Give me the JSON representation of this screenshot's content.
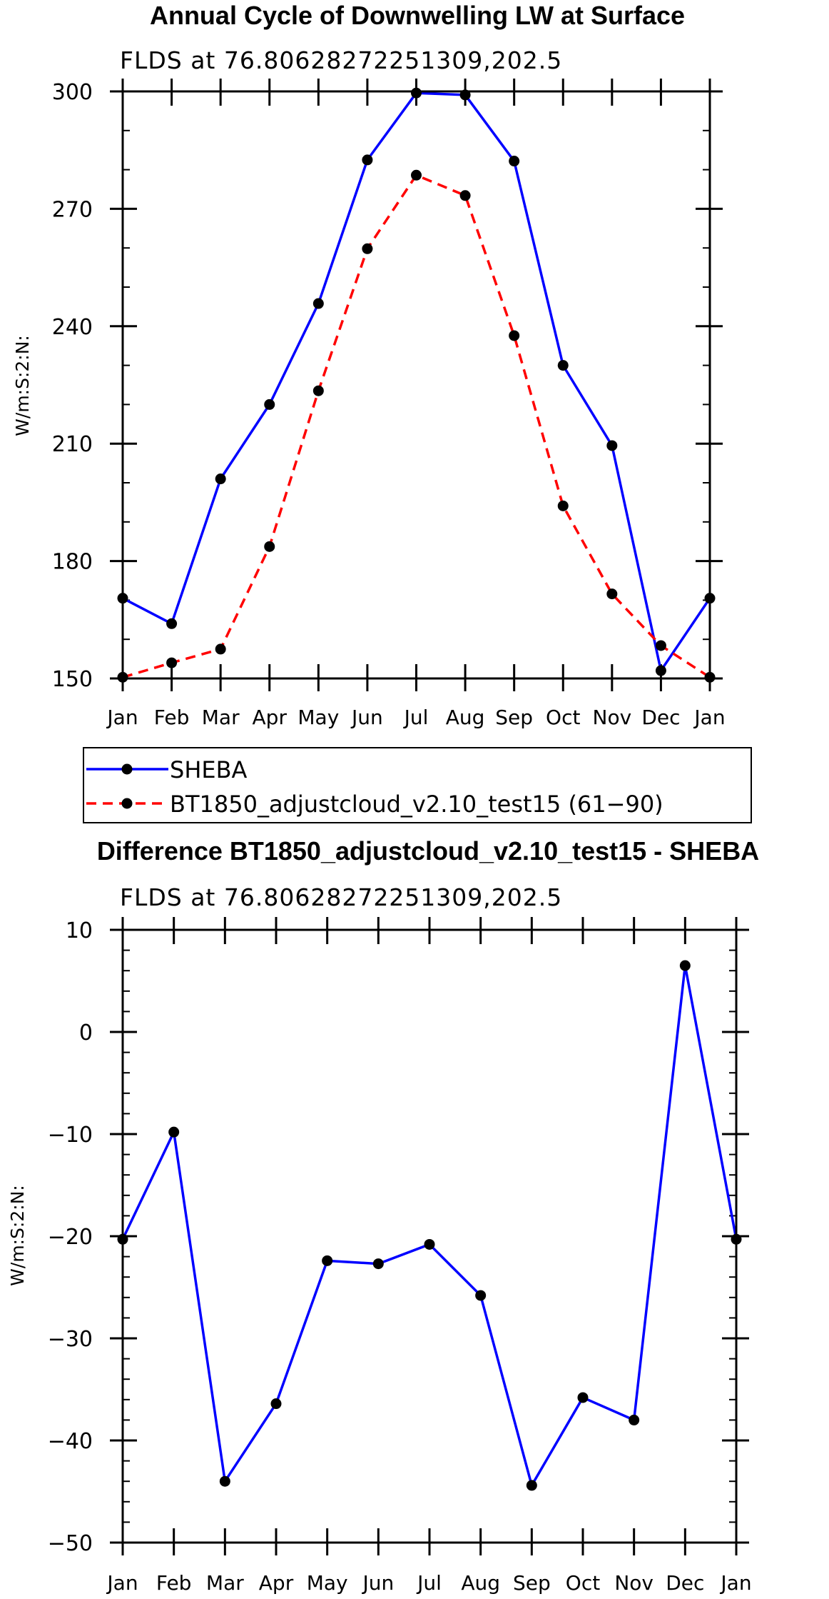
{
  "chart_data": [
    {
      "type": "line",
      "title": "Annual Cycle of Downwelling LW at Surface",
      "subtitle": "FLDS at 76.80628272251309,202.5",
      "xlabel": "",
      "ylabel": "W/m:S:2:N:",
      "categories": [
        "Jan",
        "Feb",
        "Mar",
        "Apr",
        "May",
        "Jun",
        "Jul",
        "Aug",
        "Sep",
        "Oct",
        "Nov",
        "Dec",
        "Jan"
      ],
      "ylim": [
        150,
        300
      ],
      "yticks": [
        150,
        180,
        210,
        240,
        270,
        300
      ],
      "ytick_labels": [
        "150",
        "180",
        "210",
        "240",
        "270",
        "300"
      ],
      "series": [
        {
          "name": "SHEBA",
          "color": "#0000ff",
          "dash": "solid",
          "values": [
            170.5,
            164,
            201,
            220,
            245.8,
            282.5,
            299.6,
            299.1,
            282.2,
            230,
            209.5,
            152,
            170.5
          ]
        },
        {
          "name": "BT1850_adjustcloud_v2.10_test15 (61−90)",
          "color": "#ff0000",
          "dash": "dashed",
          "values": [
            150.3,
            154,
            157.5,
            183.7,
            223.5,
            259.8,
            278.6,
            273.4,
            237.6,
            194.1,
            171.6,
            158.4,
            150.3
          ]
        }
      ]
    },
    {
      "type": "line",
      "title": "Difference BT1850_adjustcloud_v2.10_test15 - SHEBA",
      "subtitle": "FLDS at 76.80628272251309,202.5",
      "xlabel": "",
      "ylabel": "W/m:S:2:N:",
      "categories": [
        "Jan",
        "Feb",
        "Mar",
        "Apr",
        "May",
        "Jun",
        "Jul",
        "Aug",
        "Sep",
        "Oct",
        "Nov",
        "Dec",
        "Jan"
      ],
      "ylim": [
        -50,
        10
      ],
      "yticks": [
        -50,
        -40,
        -30,
        -20,
        -10,
        0,
        10
      ],
      "ytick_labels": [
        "−50",
        "−40",
        "−30",
        "−20",
        "−10",
        "0",
        "10"
      ],
      "series": [
        {
          "name": "Difference",
          "color": "#0000ff",
          "dash": "solid",
          "values": [
            -20.3,
            -9.8,
            -44,
            -36.4,
            -22.4,
            -22.7,
            -20.8,
            -25.8,
            -44.4,
            -35.8,
            -38,
            6.5,
            -20.3
          ]
        }
      ]
    }
  ]
}
